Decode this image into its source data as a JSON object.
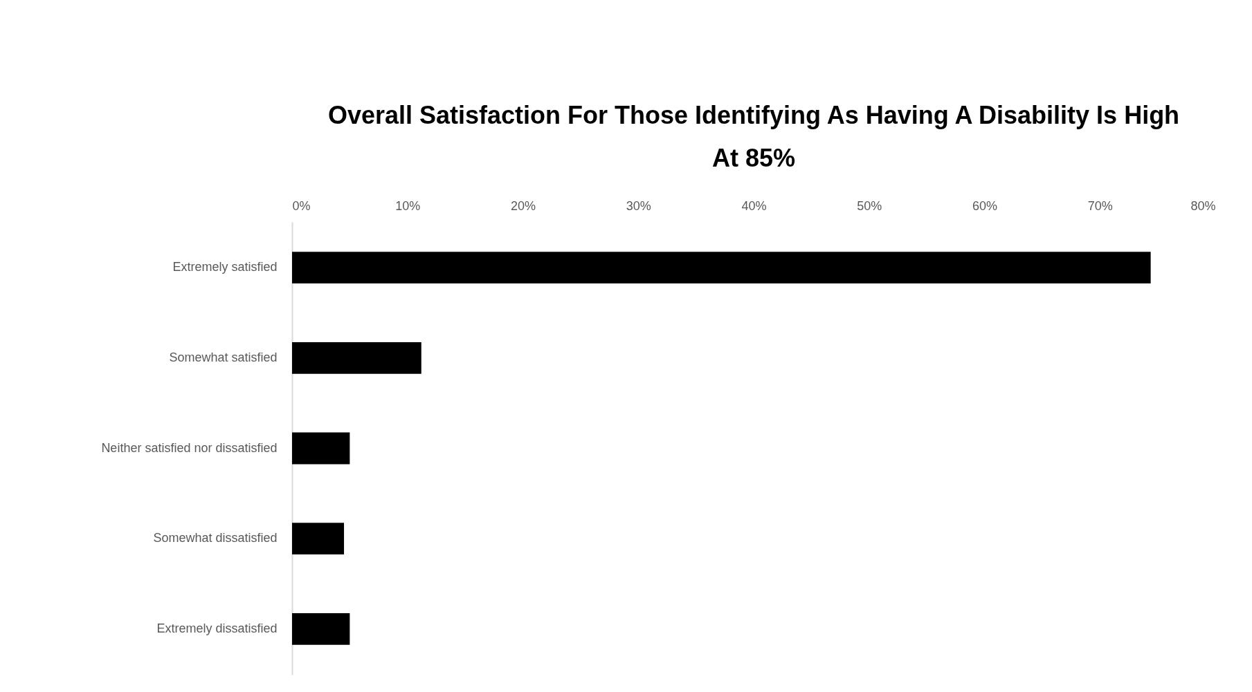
{
  "chart_data": {
    "type": "bar",
    "orientation": "horizontal",
    "title": "Overall Satisfaction For Those Identifying As Having A Disability Is High At 85%",
    "categories": [
      "Extremely satisfied",
      "Somewhat satisfied",
      "Neither satisfied nor dissatisfied",
      "Somewhat dissatisfied",
      "Extremely dissatisfied"
    ],
    "values": [
      74.4,
      11.2,
      5.0,
      4.5,
      5.0
    ],
    "color": "#000000",
    "xlim": [
      0,
      80
    ],
    "xticks": [
      {
        "value": 0,
        "label": "0%"
      },
      {
        "value": 10,
        "label": "10%"
      },
      {
        "value": 20,
        "label": "20%"
      },
      {
        "value": 30,
        "label": "30%"
      },
      {
        "value": 40,
        "label": "40%"
      },
      {
        "value": 50,
        "label": "50%"
      },
      {
        "value": 60,
        "label": "60%"
      },
      {
        "value": 70,
        "label": "70%"
      },
      {
        "value": 80,
        "label": "80%"
      }
    ],
    "grid": false
  }
}
